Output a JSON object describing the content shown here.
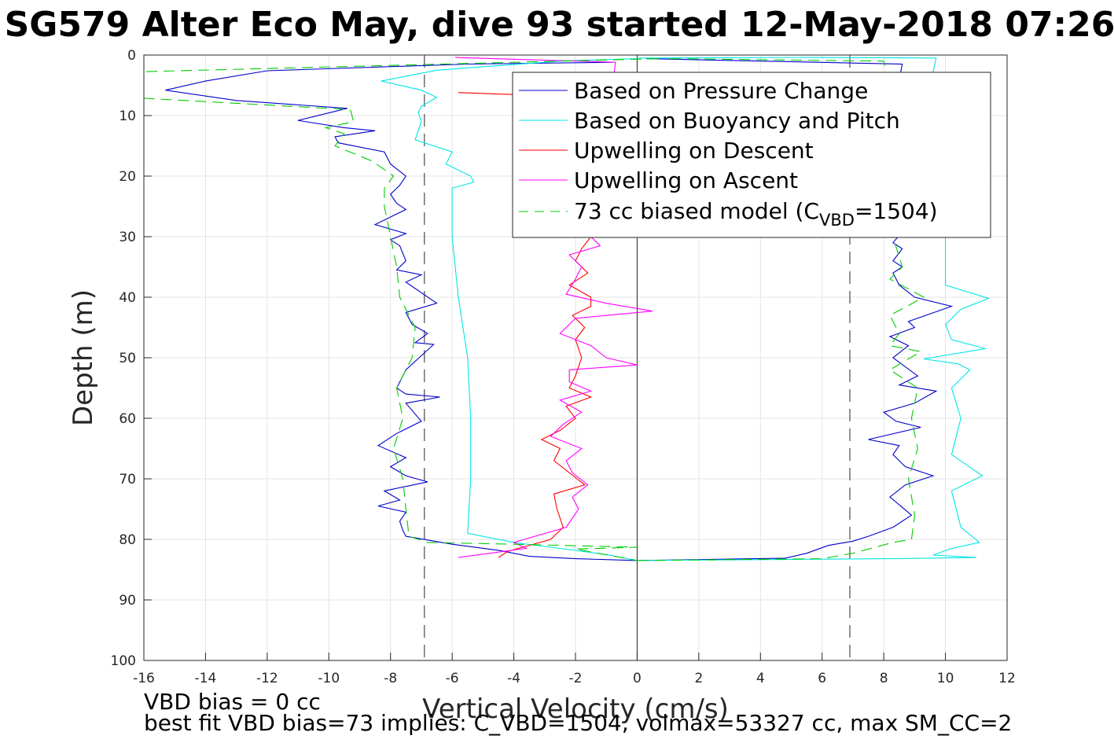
{
  "chart_data": {
    "type": "line",
    "title": "SG579 Alter Eco May, dive 93 started 12-May-2018 07:26",
    "xlabel": "Vertical Velocity (cm/s)",
    "ylabel": "Depth (m)",
    "xlim": [
      -16,
      12
    ],
    "ylim": [
      0,
      100
    ],
    "y_reversed": true,
    "xticks": [
      -16,
      -14,
      -12,
      -10,
      -8,
      -6,
      -4,
      -2,
      0,
      2,
      4,
      6,
      8,
      10,
      12
    ],
    "yticks": [
      0,
      10,
      20,
      30,
      40,
      50,
      60,
      70,
      80,
      90,
      100
    ],
    "grid": true,
    "legend_position": "top-right",
    "vertical_reference_lines": [
      -6.9,
      0,
      6.9
    ],
    "legend": {
      "pressure": "Based on Pressure Change",
      "buoyancy": "Based on Buoyancy and Pitch",
      "up_descent": "Upwelling on Descent",
      "up_ascent": "Upwelling on Ascent",
      "model_main": "73 cc biased model (C",
      "model_sub": "VBD",
      "model_tail": "=1504)"
    },
    "footer": {
      "line1": "VBD bias = 0 cc",
      "line2": "best fit VBD bias=73 implies: C_VBD=1504, volmax=53327 cc, max SM_CC=2"
    },
    "series": [
      {
        "key": "pressure_descent",
        "color": "#0000cc",
        "points": [
          [
            -0.8,
            1.2
          ],
          [
            -5.5,
            1.5
          ],
          [
            -12,
            2.6
          ],
          [
            -14,
            4.3
          ],
          [
            -15.3,
            5.8
          ],
          [
            -13,
            7.5
          ],
          [
            -9.4,
            8.8
          ],
          [
            -11,
            10.8
          ],
          [
            -9.5,
            12
          ],
          [
            -8.5,
            12.5
          ],
          [
            -9.8,
            13.5
          ],
          [
            -9.7,
            14.5
          ],
          [
            -8.2,
            16
          ],
          [
            -8,
            18
          ],
          [
            -7.5,
            20
          ],
          [
            -7.7,
            21.5
          ],
          [
            -8,
            23
          ],
          [
            -7.8,
            24.5
          ],
          [
            -7.5,
            25.5
          ],
          [
            -8.5,
            28
          ],
          [
            -7.5,
            29.5
          ],
          [
            -8,
            30.5
          ],
          [
            -7.7,
            31.5
          ],
          [
            -7.5,
            34
          ],
          [
            -7.8,
            35.5
          ],
          [
            -7,
            36.3
          ],
          [
            -7.5,
            37.5
          ],
          [
            -6.5,
            41
          ],
          [
            -7.5,
            42.5
          ],
          [
            -7.3,
            44.5
          ],
          [
            -6.8,
            46
          ],
          [
            -7.2,
            47.5
          ],
          [
            -6.6,
            47.8
          ],
          [
            -7.5,
            52
          ],
          [
            -7.8,
            55
          ],
          [
            -7.5,
            56
          ],
          [
            -6.4,
            56.5
          ],
          [
            -7.5,
            57.5
          ],
          [
            -7,
            60.5
          ],
          [
            -7.8,
            62.5
          ],
          [
            -8.4,
            64.5
          ],
          [
            -7.5,
            66.5
          ],
          [
            -8,
            68
          ],
          [
            -7.5,
            69.5
          ],
          [
            -6.8,
            70.5
          ],
          [
            -8.2,
            72
          ],
          [
            -7.7,
            73.5
          ],
          [
            -8.4,
            74.5
          ],
          [
            -7.5,
            75.5
          ],
          [
            -7.7,
            77
          ],
          [
            -7.6,
            78.5
          ],
          [
            -7.5,
            79.5
          ],
          [
            -6,
            80.8
          ],
          [
            -4.5,
            81.8
          ],
          [
            -3.5,
            82.8
          ],
          [
            -2,
            83.2
          ],
          [
            0,
            83.5
          ]
        ]
      },
      {
        "key": "pressure_ascent",
        "color": "#0000cc",
        "points": [
          [
            0,
            83.5
          ],
          [
            4.8,
            83.1
          ],
          [
            5.5,
            82.3
          ],
          [
            6.2,
            81
          ],
          [
            7,
            80.3
          ],
          [
            7.5,
            79.5
          ],
          [
            8.3,
            78
          ],
          [
            8.9,
            76
          ],
          [
            8.2,
            73
          ],
          [
            8.7,
            71
          ],
          [
            9.6,
            69.5
          ],
          [
            8.7,
            68
          ],
          [
            8.3,
            66
          ],
          [
            8.5,
            64.5
          ],
          [
            7.5,
            63.5
          ],
          [
            9.2,
            61.5
          ],
          [
            8.4,
            60.5
          ],
          [
            8,
            59
          ],
          [
            9,
            57.5
          ],
          [
            9.7,
            55.5
          ],
          [
            8.5,
            54.5
          ],
          [
            9.1,
            53
          ],
          [
            8.7,
            51.5
          ],
          [
            8.3,
            50
          ],
          [
            8.8,
            48
          ],
          [
            8.2,
            46.5
          ],
          [
            9,
            45
          ],
          [
            8.8,
            44
          ],
          [
            10.2,
            41.5
          ],
          [
            9,
            40
          ],
          [
            8.5,
            38
          ],
          [
            8.3,
            36
          ],
          [
            8.6,
            35
          ],
          [
            8.3,
            34
          ],
          [
            8.6,
            32
          ],
          [
            8.3,
            31
          ],
          [
            8.8,
            28
          ],
          [
            8,
            25
          ],
          [
            8.6,
            15
          ],
          [
            8,
            8
          ],
          [
            8.5,
            4
          ],
          [
            8.6,
            1.5
          ],
          [
            0.3,
            0.6
          ]
        ]
      },
      {
        "key": "buoyancy_descent",
        "color": "#00e6e6",
        "points": [
          [
            0,
            0.6
          ],
          [
            -2.5,
            1
          ],
          [
            -6.5,
            2.5
          ],
          [
            -8.3,
            4.3
          ],
          [
            -7,
            5.8
          ],
          [
            -6.5,
            7
          ],
          [
            -7,
            8.5
          ],
          [
            -7.1,
            9.5
          ],
          [
            -7,
            11
          ],
          [
            -7.2,
            14
          ],
          [
            -6,
            16
          ],
          [
            -6.2,
            18
          ],
          [
            -5.4,
            20
          ],
          [
            -5.3,
            21
          ],
          [
            -6,
            22
          ],
          [
            -6,
            30
          ],
          [
            -5.8,
            40
          ],
          [
            -5.5,
            50
          ],
          [
            -5.4,
            60
          ],
          [
            -5.4,
            70
          ],
          [
            -5.5,
            79
          ],
          [
            -4,
            80.5
          ],
          [
            -2.5,
            81.5
          ],
          [
            -1,
            82.5
          ],
          [
            0,
            83.5
          ]
        ]
      },
      {
        "key": "buoyancy_ascent",
        "color": "#00e6e6",
        "points": [
          [
            0,
            83.5
          ],
          [
            8.1,
            83.2
          ],
          [
            11,
            83
          ],
          [
            9.6,
            82.6
          ],
          [
            10.2,
            81.5
          ],
          [
            11.1,
            80.5
          ],
          [
            10.5,
            78
          ],
          [
            10.2,
            72
          ],
          [
            11.2,
            69.5
          ],
          [
            10.2,
            66
          ],
          [
            10.5,
            60
          ],
          [
            10.2,
            55
          ],
          [
            10.8,
            52
          ],
          [
            10.4,
            51
          ],
          [
            9.3,
            50.2
          ],
          [
            11.3,
            48.5
          ],
          [
            10.2,
            47
          ],
          [
            10,
            44.5
          ],
          [
            10.5,
            42
          ],
          [
            11.4,
            40.2
          ],
          [
            10,
            38
          ],
          [
            10,
            30
          ],
          [
            9.9,
            25
          ],
          [
            10,
            15
          ],
          [
            9.8,
            10
          ],
          [
            9.5,
            5
          ],
          [
            9.7,
            0.5
          ],
          [
            5.5,
            0.4
          ],
          [
            0,
            0.5
          ]
        ]
      },
      {
        "key": "upwelling_descent",
        "color": "#ff0000",
        "points": [
          [
            -5.8,
            6.2
          ],
          [
            -1.5,
            7
          ],
          [
            -2,
            8
          ],
          [
            -1.7,
            10
          ],
          [
            -2,
            20
          ],
          [
            -2,
            28
          ],
          [
            -1.5,
            30
          ],
          [
            -1.8,
            32
          ],
          [
            -2,
            34
          ],
          [
            -1.6,
            36
          ],
          [
            -2.2,
            38
          ],
          [
            -1.5,
            40
          ],
          [
            -1.5,
            41.5
          ],
          [
            -2.1,
            43
          ],
          [
            -1.7,
            45
          ],
          [
            -2,
            47
          ],
          [
            -1.8,
            50
          ],
          [
            -2,
            53
          ],
          [
            -2.2,
            55
          ],
          [
            -1.5,
            56.5
          ],
          [
            -2.3,
            58
          ],
          [
            -2,
            60
          ],
          [
            -2.5,
            62
          ],
          [
            -3.1,
            63.5
          ],
          [
            -2.5,
            65
          ],
          [
            -2.7,
            67
          ],
          [
            -1.7,
            71
          ],
          [
            -2.7,
            72.5
          ],
          [
            -2.6,
            75
          ],
          [
            -2.4,
            78
          ],
          [
            -2.8,
            80
          ],
          [
            -4.2,
            82
          ],
          [
            -4.5,
            83
          ]
        ]
      },
      {
        "key": "upwelling_ascent",
        "color": "#ff00ff",
        "points": [
          [
            -5.9,
            0.4
          ],
          [
            -0.7,
            1.2
          ],
          [
            -1.5,
            30
          ],
          [
            -1.2,
            31.5
          ],
          [
            -2.2,
            33
          ],
          [
            -1.8,
            35
          ],
          [
            -2,
            37
          ],
          [
            -2.3,
            39.5
          ],
          [
            -1,
            41
          ],
          [
            0.5,
            42.3
          ],
          [
            -2,
            43.5
          ],
          [
            -2.5,
            46
          ],
          [
            -1.5,
            48
          ],
          [
            -1,
            50
          ],
          [
            0,
            51.2
          ],
          [
            -2.2,
            52
          ],
          [
            -2.2,
            54
          ],
          [
            -1.5,
            55.5
          ],
          [
            -2.5,
            57
          ],
          [
            -1.8,
            59
          ],
          [
            -2.4,
            61
          ],
          [
            -2.8,
            63
          ],
          [
            -1.8,
            65
          ],
          [
            -2.3,
            67
          ],
          [
            -2.1,
            69
          ],
          [
            -1.6,
            71
          ],
          [
            -2.1,
            73
          ],
          [
            -1.9,
            75
          ],
          [
            -2.3,
            78
          ],
          [
            -4,
            80.5
          ],
          [
            -3.6,
            81.5
          ],
          [
            -5.8,
            83
          ]
        ]
      },
      {
        "key": "model_descent",
        "color": "#00cc00",
        "dashed": true,
        "points": [
          [
            0.7,
            0.6
          ],
          [
            -16.5,
            2.8
          ],
          [
            -16.5,
            7
          ],
          [
            -9.3,
            9
          ],
          [
            -9.2,
            11
          ],
          [
            -10.1,
            12
          ],
          [
            -9.5,
            13
          ],
          [
            -9.8,
            15
          ],
          [
            -8.6,
            17.5
          ],
          [
            -7.9,
            20
          ],
          [
            -8.2,
            22
          ],
          [
            -8.2,
            25
          ],
          [
            -8,
            30
          ],
          [
            -7.8,
            35
          ],
          [
            -7.7,
            40
          ],
          [
            -7.2,
            45
          ],
          [
            -7.3,
            50
          ],
          [
            -7.8,
            55
          ],
          [
            -7.6,
            60
          ],
          [
            -7.9,
            65
          ],
          [
            -7.6,
            70
          ],
          [
            -7.5,
            75
          ],
          [
            -7.4,
            79.5
          ],
          [
            -6.8,
            80.5
          ],
          [
            -4,
            80.8
          ],
          [
            0,
            81.3
          ],
          [
            -2,
            81.6
          ],
          [
            0,
            83.5
          ]
        ]
      },
      {
        "key": "model_ascent",
        "color": "#00cc00",
        "dashed": true,
        "points": [
          [
            0,
            83.5
          ],
          [
            6,
            83.2
          ],
          [
            7,
            82.3
          ],
          [
            8.3,
            80.5
          ],
          [
            8.9,
            80
          ],
          [
            9,
            76
          ],
          [
            8.8,
            70
          ],
          [
            9.1,
            65
          ],
          [
            8.9,
            60
          ],
          [
            9.1,
            55
          ],
          [
            8.2,
            52
          ],
          [
            9.2,
            49
          ],
          [
            8.2,
            48
          ],
          [
            8.5,
            46
          ],
          [
            8.2,
            43
          ],
          [
            9.3,
            40
          ],
          [
            8.2,
            37
          ],
          [
            8.6,
            35
          ],
          [
            8.3,
            30
          ],
          [
            8.3,
            15
          ],
          [
            8.2,
            5
          ],
          [
            8,
            1
          ],
          [
            1,
            0.6
          ]
        ]
      }
    ]
  }
}
